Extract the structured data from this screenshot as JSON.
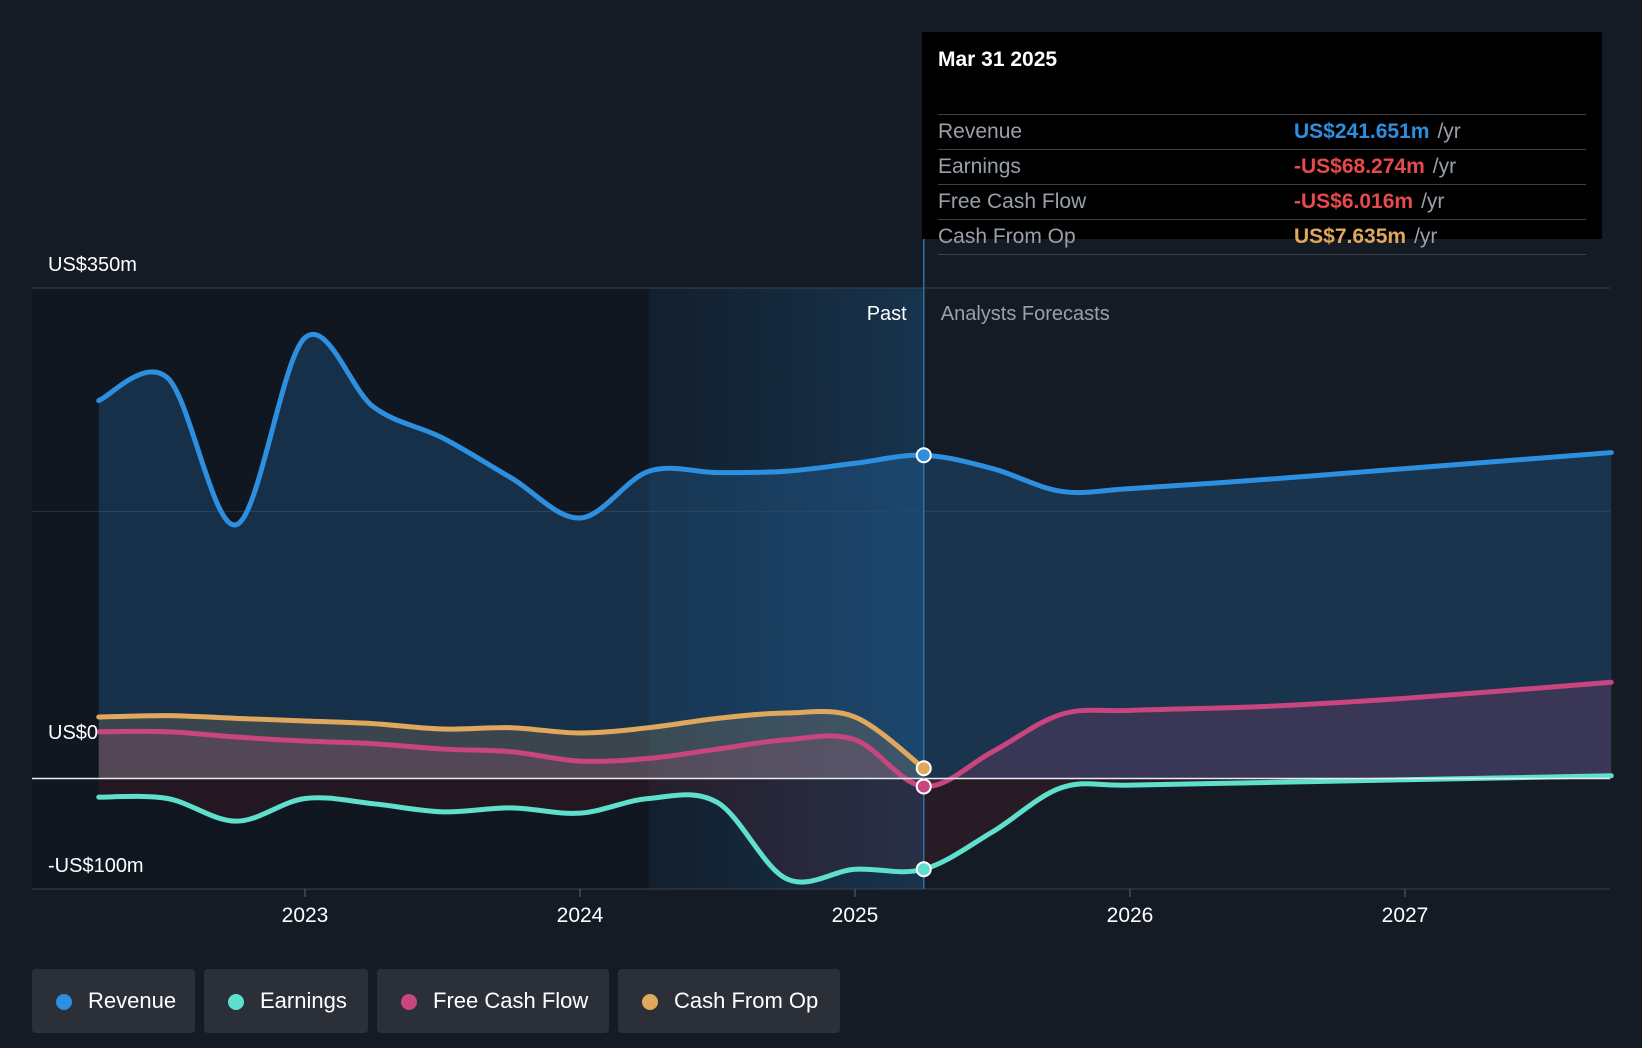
{
  "chart_data": {
    "type": "line",
    "x_ticks": [
      "2023",
      "2024",
      "2025",
      "2026",
      "2027"
    ],
    "y_labels": {
      "top": "US$350m",
      "zero": "US$0",
      "bottom": "-US$100m"
    },
    "ylim": [
      -100,
      350
    ],
    "divider_labels": {
      "past": "Past",
      "forecast": "Analysts Forecasts"
    },
    "series": [
      {
        "name": "Revenue",
        "color": "#2d8fe0",
        "x": [
          2022.25,
          2022.5,
          2022.75,
          2023.0,
          2023.25,
          2023.5,
          2023.75,
          2024.0,
          2024.25,
          2024.5,
          2024.75,
          2025.0,
          2025.25,
          2025.5,
          2025.75,
          2026.0,
          2026.5,
          2027.0,
          2027.75
        ],
        "y": [
          283,
          300,
          190,
          330,
          278,
          255,
          225,
          195,
          230,
          229,
          230,
          236,
          242,
          232,
          215,
          217,
          224,
          232,
          244
        ]
      },
      {
        "name": "Earnings",
        "color": "#5fe0cc",
        "x": [
          2022.25,
          2022.5,
          2022.75,
          2023.0,
          2023.25,
          2023.5,
          2023.75,
          2024.0,
          2024.25,
          2024.5,
          2024.75,
          2025.0,
          2025.25,
          2025.5,
          2025.75,
          2026.0,
          2026.5,
          2027.0,
          2027.75
        ],
        "y": [
          -14,
          -15,
          -32,
          -15,
          -19,
          -25,
          -22,
          -26,
          -15,
          -18,
          -75,
          -68,
          -68,
          -40,
          -7,
          -5,
          -3,
          -1,
          2
        ]
      },
      {
        "name": "Free Cash Flow",
        "color": "#c8457f",
        "x": [
          2022.25,
          2022.5,
          2022.75,
          2023.0,
          2023.25,
          2023.5,
          2023.75,
          2024.0,
          2024.25,
          2024.5,
          2024.75,
          2025.0,
          2025.25,
          2025.5,
          2025.75,
          2026.0,
          2026.5,
          2027.0,
          2027.75
        ],
        "y": [
          35,
          35,
          31,
          28,
          26,
          22,
          20,
          13,
          15,
          22,
          29,
          29,
          -6,
          20,
          48,
          51,
          54,
          60,
          72
        ]
      },
      {
        "name": "Cash From Op",
        "color": "#e0a85c",
        "x": [
          2022.25,
          2022.5,
          2022.75,
          2023.0,
          2023.25,
          2023.5,
          2023.75,
          2024.0,
          2024.25,
          2024.5,
          2024.75,
          2025.0,
          2025.25
        ],
        "y": [
          46,
          47,
          45,
          43,
          41,
          37,
          38,
          34,
          38,
          45,
          49,
          46,
          7.635
        ]
      }
    ],
    "current_x": 2025.25,
    "shaded_from_x": 2024.25
  },
  "tooltip": {
    "date": "Mar 31 2025",
    "rows": [
      {
        "label": "Revenue",
        "value": "US$241.651m",
        "unit": "/yr",
        "color": "#2d8fe0"
      },
      {
        "label": "Earnings",
        "value": "-US$68.274m",
        "unit": "/yr",
        "color": "#e64a4a"
      },
      {
        "label": "Free Cash Flow",
        "value": "-US$6.016m",
        "unit": "/yr",
        "color": "#e64a4a"
      },
      {
        "label": "Cash From Op",
        "value": "US$7.635m",
        "unit": "/yr",
        "color": "#e0a85c"
      }
    ]
  },
  "legend": [
    {
      "label": "Revenue",
      "color": "#2d8fe0"
    },
    {
      "label": "Earnings",
      "color": "#5fe0cc"
    },
    {
      "label": "Free Cash Flow",
      "color": "#c8457f"
    },
    {
      "label": "Cash From Op",
      "color": "#e0a85c"
    }
  ]
}
